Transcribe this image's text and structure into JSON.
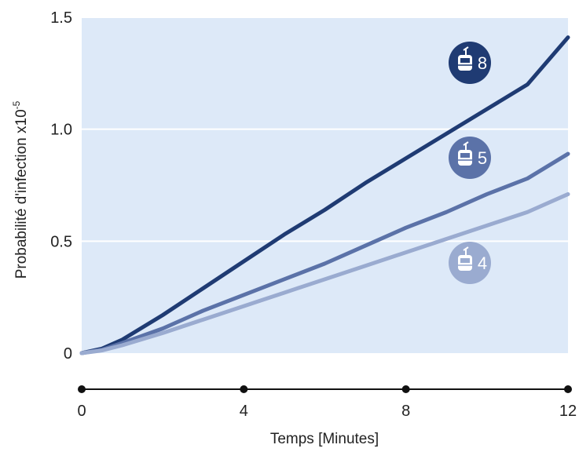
{
  "chart_data": {
    "type": "line",
    "xlabel": "Temps [Minutes]",
    "ylabel": "Probabilité d'infection x10",
    "ylabel_exponent": "-5",
    "xlim": [
      0,
      12
    ],
    "ylim": [
      0,
      1.5
    ],
    "x_ticks": [
      "0",
      "4",
      "8",
      "12"
    ],
    "y_ticks": [
      "0",
      "0.5",
      "1.0",
      "1.5"
    ],
    "grid": "horizontal",
    "series": [
      {
        "name": "8",
        "color": "#1f3b73",
        "x": [
          0,
          0.5,
          1,
          2,
          3,
          4,
          5,
          6,
          7,
          8,
          9,
          10,
          11,
          12
        ],
        "y": [
          0,
          0.02,
          0.06,
          0.17,
          0.29,
          0.41,
          0.53,
          0.64,
          0.76,
          0.87,
          0.98,
          1.09,
          1.2,
          1.41
        ]
      },
      {
        "name": "5",
        "color": "#5b72a8",
        "x": [
          0,
          0.5,
          1,
          2,
          3,
          4,
          5,
          6,
          7,
          8,
          9,
          10,
          11,
          12
        ],
        "y": [
          0,
          0.015,
          0.045,
          0.11,
          0.19,
          0.26,
          0.33,
          0.4,
          0.48,
          0.56,
          0.63,
          0.71,
          0.78,
          0.89
        ]
      },
      {
        "name": "4",
        "color": "#9aabd0",
        "x": [
          0,
          0.5,
          1,
          2,
          3,
          4,
          5,
          6,
          7,
          8,
          9,
          10,
          11,
          12
        ],
        "y": [
          0,
          0.012,
          0.035,
          0.09,
          0.15,
          0.21,
          0.27,
          0.33,
          0.39,
          0.45,
          0.51,
          0.57,
          0.63,
          0.71
        ]
      }
    ],
    "badges": [
      {
        "label": "8",
        "icon": "cable-car-icon",
        "color": "#1f3b73"
      },
      {
        "label": "5",
        "icon": "cable-car-icon",
        "color": "#5b72a8"
      },
      {
        "label": "4",
        "icon": "cable-car-icon",
        "color": "#9aabd0"
      }
    ],
    "plot_background": "#dde9f8",
    "grid_color": "#ffffff"
  }
}
